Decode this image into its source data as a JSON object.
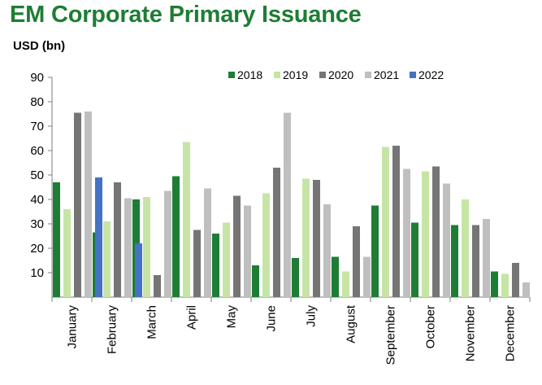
{
  "chart_data": {
    "type": "bar",
    "title": "EM Corporate Primary Issuance",
    "ylabel": "USD (bn)",
    "xlabel": "",
    "ylim": [
      0,
      90
    ],
    "yticks": [
      10,
      20,
      30,
      40,
      50,
      60,
      70,
      80,
      90
    ],
    "grid": false,
    "legend_position": "top-right",
    "categories": [
      "January",
      "February",
      "March",
      "April",
      "May",
      "June",
      "July",
      "August",
      "September",
      "October",
      "November",
      "December"
    ],
    "series": [
      {
        "name": "2018",
        "color": "#1e7d34",
        "values": [
          47,
          26.5,
          40,
          49.5,
          26,
          13,
          16,
          16.5,
          37.5,
          30.5,
          29.5,
          10.5
        ]
      },
      {
        "name": "2019",
        "color": "#c6e5a5",
        "values": [
          36,
          31,
          41,
          63.5,
          30.5,
          42.5,
          48.5,
          10.5,
          61.5,
          51.5,
          40,
          9.5
        ]
      },
      {
        "name": "2020",
        "color": "#757575",
        "values": [
          75.5,
          47,
          9,
          27.5,
          41.5,
          53,
          48,
          29,
          62,
          53.5,
          29.5,
          14
        ]
      },
      {
        "name": "2021",
        "color": "#bfbfbf",
        "values": [
          76,
          40.5,
          43.5,
          44.5,
          37.5,
          75.5,
          38,
          16.5,
          52.5,
          46.5,
          32,
          6
        ]
      },
      {
        "name": "2022",
        "color": "#4472c4",
        "values": [
          49,
          22,
          null,
          null,
          null,
          null,
          null,
          null,
          null,
          null,
          null,
          null
        ]
      }
    ]
  }
}
